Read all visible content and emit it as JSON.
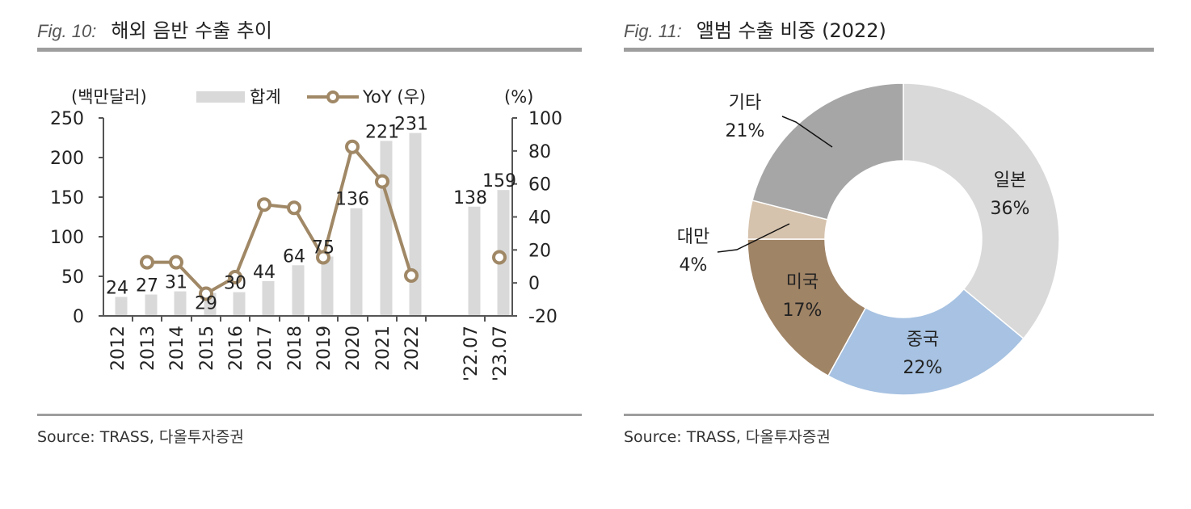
{
  "left": {
    "fig_label": "Fig. 10:",
    "title": "해외 음반 수출 추이",
    "source": "Source: TRASS, 다올투자증권"
  },
  "right": {
    "fig_label": "Fig. 11:",
    "title": "앨범 수출 비중 (2022)",
    "source": "Source: TRASS, 다올투자증권"
  },
  "colors": {
    "bar": "#d9d9d9",
    "line": "#a08866",
    "axis": "#555555",
    "rule": "#9e9e9e",
    "japan": "#d9d9d9",
    "china": "#a7c2e2",
    "usa": "#a08466",
    "taiwan": "#d6c3ad",
    "other": "#a6a6a6"
  },
  "chart_data": [
    {
      "type": "bar+line",
      "title": "해외 음반 수출 추이",
      "left_unit": "(백만달러)",
      "right_unit": "(%)",
      "legend": {
        "bar": "합계",
        "line": "YoY (우)"
      },
      "categories": [
        "2012",
        "2013",
        "2014",
        "2015",
        "2016",
        "2017",
        "2018",
        "2019",
        "2020",
        "2021",
        "2022",
        "'22.07",
        "'23.07"
      ],
      "bar_values": [
        24,
        27,
        31,
        29,
        30,
        44,
        64,
        75,
        136,
        221,
        231,
        138,
        159
      ],
      "bar_labels": [
        "24",
        "27",
        "31",
        "29",
        "30",
        "44",
        "64",
        "75",
        "136",
        "221",
        "231",
        "138",
        "159"
      ],
      "yoy_values": [
        null,
        12.5,
        12.5,
        -6.5,
        3.5,
        47.5,
        45.5,
        15.5,
        82.5,
        61.5,
        4.5,
        null,
        15.5
      ],
      "ylim_left": [
        0,
        250
      ],
      "yticks_left": [
        "0",
        "50",
        "100",
        "150",
        "200",
        "250"
      ],
      "ylim_right": [
        -20,
        100
      ],
      "yticks_right": [
        "-20",
        "0",
        "20",
        "40",
        "60",
        "80",
        "100"
      ]
    },
    {
      "type": "donut",
      "title": "앨범 수출 비중 (2022)",
      "slices": [
        {
          "name": "일본",
          "value": 36,
          "label": "36%"
        },
        {
          "name": "중국",
          "value": 22,
          "label": "22%"
        },
        {
          "name": "미국",
          "value": 17,
          "label": "17%"
        },
        {
          "name": "대만",
          "value": 4,
          "label": "4%"
        },
        {
          "name": "기타",
          "value": 21,
          "label": "21%"
        }
      ]
    }
  ]
}
